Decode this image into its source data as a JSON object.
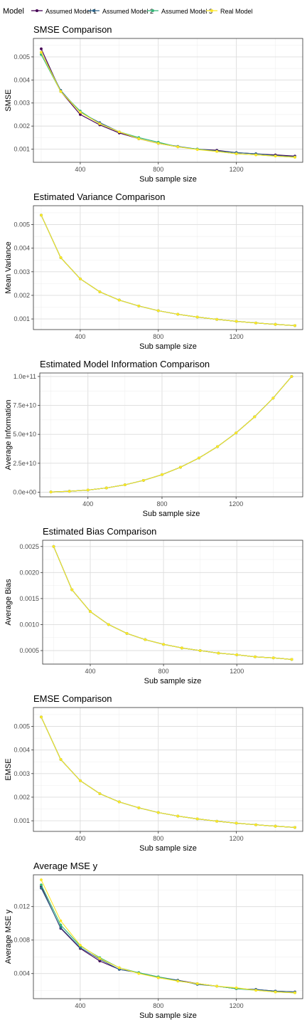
{
  "legend": {
    "title": "Model",
    "entries": [
      {
        "name": "Assumed Model 1",
        "color": "#440154"
      },
      {
        "name": "Assumed Model 2",
        "color": "#31688e"
      },
      {
        "name": "Assumed Model 3",
        "color": "#35b779"
      },
      {
        "name": "Real Model",
        "color": "#fde725"
      }
    ]
  },
  "chart_data": [
    {
      "type": "line",
      "title": "SMSE Comparison",
      "xlabel": "Sub sample size",
      "ylabel": "SMSE",
      "x": [
        200,
        300,
        400,
        500,
        600,
        700,
        800,
        900,
        1000,
        1100,
        1200,
        1300,
        1400,
        1500
      ],
      "xlim": [
        160,
        1540
      ],
      "xticks": [
        400,
        800,
        1200
      ],
      "xtick_labels": [
        "400",
        "800",
        "1200"
      ],
      "ylim": [
        0.00043,
        0.0058
      ],
      "yticks": [
        0.001,
        0.002,
        0.003,
        0.004,
        0.005
      ],
      "ytick_labels": [
        "0.001",
        "0.002",
        "0.003",
        "0.004",
        "0.005"
      ],
      "grid": true,
      "series": [
        {
          "name": "Assumed Model 1",
          "values": [
            0.00535,
            0.0035,
            0.0025,
            0.00205,
            0.0017,
            0.00145,
            0.00125,
            0.0011,
            0.001,
            0.00095,
            0.00085,
            0.0008,
            0.00075,
            0.0007
          ]
        },
        {
          "name": "Assumed Model 2",
          "values": [
            0.0052,
            0.00355,
            0.0026,
            0.00215,
            0.00175,
            0.00145,
            0.00125,
            0.00112,
            0.001,
            0.00092,
            0.00085,
            0.0008,
            0.00072,
            0.00067
          ]
        },
        {
          "name": "Assumed Model 3",
          "values": [
            0.0051,
            0.0035,
            0.00265,
            0.0021,
            0.00175,
            0.0015,
            0.0013,
            0.0011,
            0.001,
            0.0009,
            0.0008,
            0.00075,
            0.0007,
            0.00065
          ]
        },
        {
          "name": "Real Model",
          "values": [
            0.0052,
            0.0035,
            0.0026,
            0.0021,
            0.00175,
            0.00145,
            0.00125,
            0.0011,
            0.00098,
            0.0009,
            0.0008,
            0.00075,
            0.0007,
            0.00065
          ]
        }
      ]
    },
    {
      "type": "line",
      "title": "Estimated Variance Comparison",
      "xlabel": "Sub sample size",
      "ylabel": "Mean Variance",
      "x": [
        200,
        300,
        400,
        500,
        600,
        700,
        800,
        900,
        1000,
        1100,
        1200,
        1300,
        1400,
        1500
      ],
      "xlim": [
        160,
        1540
      ],
      "xticks": [
        400,
        800,
        1200
      ],
      "xtick_labels": [
        "400",
        "800",
        "1200"
      ],
      "ylim": [
        0.00055,
        0.0058
      ],
      "yticks": [
        0.001,
        0.002,
        0.003,
        0.004,
        0.005
      ],
      "ytick_labels": [
        "0.001",
        "0.002",
        "0.003",
        "0.004",
        "0.005"
      ],
      "grid": true,
      "series": [
        {
          "name": "Assumed Model 1",
          "values": [
            0.0054,
            0.0036,
            0.0027,
            0.00215,
            0.0018,
            0.00155,
            0.00135,
            0.0012,
            0.00108,
            0.00098,
            0.0009,
            0.00083,
            0.00077,
            0.00072
          ]
        },
        {
          "name": "Assumed Model 2",
          "values": [
            0.0054,
            0.0036,
            0.0027,
            0.00215,
            0.0018,
            0.00155,
            0.00135,
            0.0012,
            0.00108,
            0.00098,
            0.0009,
            0.00083,
            0.00077,
            0.00072
          ]
        },
        {
          "name": "Assumed Model 3",
          "values": [
            0.0054,
            0.0036,
            0.0027,
            0.00215,
            0.0018,
            0.00155,
            0.00135,
            0.0012,
            0.00108,
            0.00098,
            0.0009,
            0.00083,
            0.00077,
            0.00072
          ]
        },
        {
          "name": "Real Model",
          "values": [
            0.0054,
            0.0036,
            0.0027,
            0.00215,
            0.0018,
            0.00155,
            0.00135,
            0.0012,
            0.00108,
            0.00098,
            0.0009,
            0.00083,
            0.00077,
            0.00072
          ]
        }
      ]
    },
    {
      "type": "line",
      "title": "Estimated Model Information Comparison",
      "xlabel": "Sub sample size",
      "ylabel": "Average Information",
      "x": [
        200,
        300,
        400,
        500,
        600,
        700,
        800,
        900,
        1000,
        1100,
        1200,
        1300,
        1400,
        1500
      ],
      "xlim": [
        140,
        1560
      ],
      "xticks": [
        400,
        800,
        1200
      ],
      "xtick_labels": [
        "400",
        "800",
        "1200"
      ],
      "ylim": [
        -4000000000,
        103000000000
      ],
      "yticks": [
        0,
        25000000000,
        50000000000,
        75000000000,
        100000000000
      ],
      "ytick_labels": [
        "0.0e+00",
        "2.5e+10",
        "5.0e+10",
        "7.5e+10",
        "1.0e+11"
      ],
      "grid": true,
      "series": [
        {
          "name": "Assumed Model 1",
          "values": [
            200000000,
            800000000,
            1900000000,
            3700000000,
            6400000000,
            10200000000,
            15200000000,
            21600000000,
            29600000000,
            39400000000,
            51200000000,
            65100000000,
            81300000000,
            100000000000
          ]
        },
        {
          "name": "Assumed Model 2",
          "values": [
            200000000,
            800000000,
            1900000000,
            3700000000,
            6400000000,
            10200000000,
            15200000000,
            21600000000,
            29600000000,
            39400000000,
            51200000000,
            65100000000,
            81300000000,
            100000000000
          ]
        },
        {
          "name": "Assumed Model 3",
          "values": [
            200000000,
            800000000,
            1900000000,
            3700000000,
            6400000000,
            10200000000,
            15200000000,
            21600000000,
            29600000000,
            39400000000,
            51200000000,
            65100000000,
            81300000000,
            100000000000
          ]
        },
        {
          "name": "Real Model",
          "values": [
            200000000,
            800000000,
            1900000000,
            3700000000,
            6400000000,
            10200000000,
            15200000000,
            21600000000,
            29600000000,
            39400000000,
            51200000000,
            65100000000,
            81300000000,
            100000000000
          ]
        }
      ]
    },
    {
      "type": "line",
      "title": "Estimated Bias Comparison",
      "xlabel": "Sub sample size",
      "ylabel": "Average Bias",
      "x": [
        200,
        300,
        400,
        500,
        600,
        700,
        800,
        900,
        1000,
        1100,
        1200,
        1300,
        1400,
        1500
      ],
      "xlim": [
        140,
        1560
      ],
      "xticks": [
        400,
        800,
        1200
      ],
      "xtick_labels": [
        "400",
        "800",
        "1200"
      ],
      "ylim": [
        0.00024,
        0.00262
      ],
      "yticks": [
        0.0005,
        0.001,
        0.0015,
        0.002,
        0.0025
      ],
      "ytick_labels": [
        "0.0005",
        "0.0010",
        "0.0015",
        "0.0020",
        "0.0025"
      ],
      "grid": true,
      "series": [
        {
          "name": "Assumed Model 1",
          "values": [
            0.0025,
            0.00167,
            0.00125,
            0.001,
            0.00083,
            0.00071,
            0.00062,
            0.00055,
            0.0005,
            0.00045,
            0.00042,
            0.00038,
            0.00036,
            0.00033
          ]
        },
        {
          "name": "Assumed Model 2",
          "values": [
            0.0025,
            0.00167,
            0.00125,
            0.001,
            0.00083,
            0.00071,
            0.00062,
            0.00055,
            0.0005,
            0.00045,
            0.00042,
            0.00038,
            0.00036,
            0.00033
          ]
        },
        {
          "name": "Assumed Model 3",
          "values": [
            0.0025,
            0.00167,
            0.00125,
            0.001,
            0.00083,
            0.00071,
            0.00062,
            0.00055,
            0.0005,
            0.00045,
            0.00042,
            0.00038,
            0.00036,
            0.00033
          ]
        },
        {
          "name": "Real Model",
          "values": [
            0.0025,
            0.00167,
            0.00125,
            0.001,
            0.00083,
            0.00071,
            0.00062,
            0.00055,
            0.0005,
            0.00045,
            0.00042,
            0.00038,
            0.00036,
            0.00033
          ]
        }
      ]
    },
    {
      "type": "line",
      "title": "EMSE Comparison",
      "xlabel": "Sub sample size",
      "ylabel": "EMSE",
      "x": [
        200,
        300,
        400,
        500,
        600,
        700,
        800,
        900,
        1000,
        1100,
        1200,
        1300,
        1400,
        1500
      ],
      "xlim": [
        160,
        1540
      ],
      "xticks": [
        400,
        800,
        1200
      ],
      "xtick_labels": [
        "400",
        "800",
        "1200"
      ],
      "ylim": [
        0.00055,
        0.0058
      ],
      "yticks": [
        0.001,
        0.002,
        0.003,
        0.004,
        0.005
      ],
      "ytick_labels": [
        "0.001",
        "0.002",
        "0.003",
        "0.004",
        "0.005"
      ],
      "grid": true,
      "series": [
        {
          "name": "Assumed Model 1",
          "values": [
            0.0054,
            0.0036,
            0.0027,
            0.00215,
            0.0018,
            0.00155,
            0.00135,
            0.0012,
            0.00108,
            0.00098,
            0.0009,
            0.00083,
            0.00077,
            0.00072
          ]
        },
        {
          "name": "Assumed Model 2",
          "values": [
            0.0054,
            0.0036,
            0.0027,
            0.00215,
            0.0018,
            0.00155,
            0.00135,
            0.0012,
            0.00108,
            0.00098,
            0.0009,
            0.00083,
            0.00077,
            0.00072
          ]
        },
        {
          "name": "Assumed Model 3",
          "values": [
            0.0054,
            0.0036,
            0.0027,
            0.00215,
            0.0018,
            0.00155,
            0.00135,
            0.0012,
            0.00108,
            0.00098,
            0.0009,
            0.00083,
            0.00077,
            0.00072
          ]
        },
        {
          "name": "Real Model",
          "values": [
            0.0054,
            0.0036,
            0.0027,
            0.00215,
            0.0018,
            0.00155,
            0.00135,
            0.0012,
            0.00108,
            0.00098,
            0.0009,
            0.00083,
            0.00077,
            0.00072
          ]
        }
      ]
    },
    {
      "type": "line",
      "title": "Average MSE y",
      "xlabel": "Sub sample size",
      "ylabel": "Average MSE y",
      "x": [
        200,
        300,
        400,
        500,
        600,
        700,
        800,
        900,
        1000,
        1100,
        1200,
        1300,
        1400,
        1500
      ],
      "xlim": [
        160,
        1540
      ],
      "xticks": [
        400,
        800,
        1200
      ],
      "xtick_labels": [
        "400",
        "800",
        "1200"
      ],
      "ylim": [
        0.001,
        0.0158
      ],
      "yticks": [
        0.004,
        0.008,
        0.012
      ],
      "ytick_labels": [
        "0.004",
        "0.008",
        "0.012"
      ],
      "grid": true,
      "series": [
        {
          "name": "Assumed Model 1",
          "values": [
            0.0144,
            0.0094,
            0.007,
            0.0055,
            0.0045,
            0.0041,
            0.0035,
            0.0032,
            0.0028,
            0.0025,
            0.0022,
            0.0021,
            0.0019,
            0.0018
          ]
        },
        {
          "name": "Assumed Model 2",
          "values": [
            0.0142,
            0.0095,
            0.0071,
            0.0057,
            0.0045,
            0.0041,
            0.0036,
            0.0032,
            0.0027,
            0.0025,
            0.0022,
            0.0021,
            0.0019,
            0.0018
          ]
        },
        {
          "name": "Assumed Model 3",
          "values": [
            0.0146,
            0.0098,
            0.0073,
            0.0059,
            0.0047,
            0.0041,
            0.0036,
            0.0031,
            0.0028,
            0.0025,
            0.0022,
            0.002,
            0.0018,
            0.0017
          ]
        },
        {
          "name": "Real Model",
          "values": [
            0.0152,
            0.0103,
            0.0074,
            0.0058,
            0.0047,
            0.004,
            0.0035,
            0.0031,
            0.0028,
            0.0025,
            0.0023,
            0.002,
            0.0018,
            0.0017
          ]
        }
      ]
    }
  ]
}
